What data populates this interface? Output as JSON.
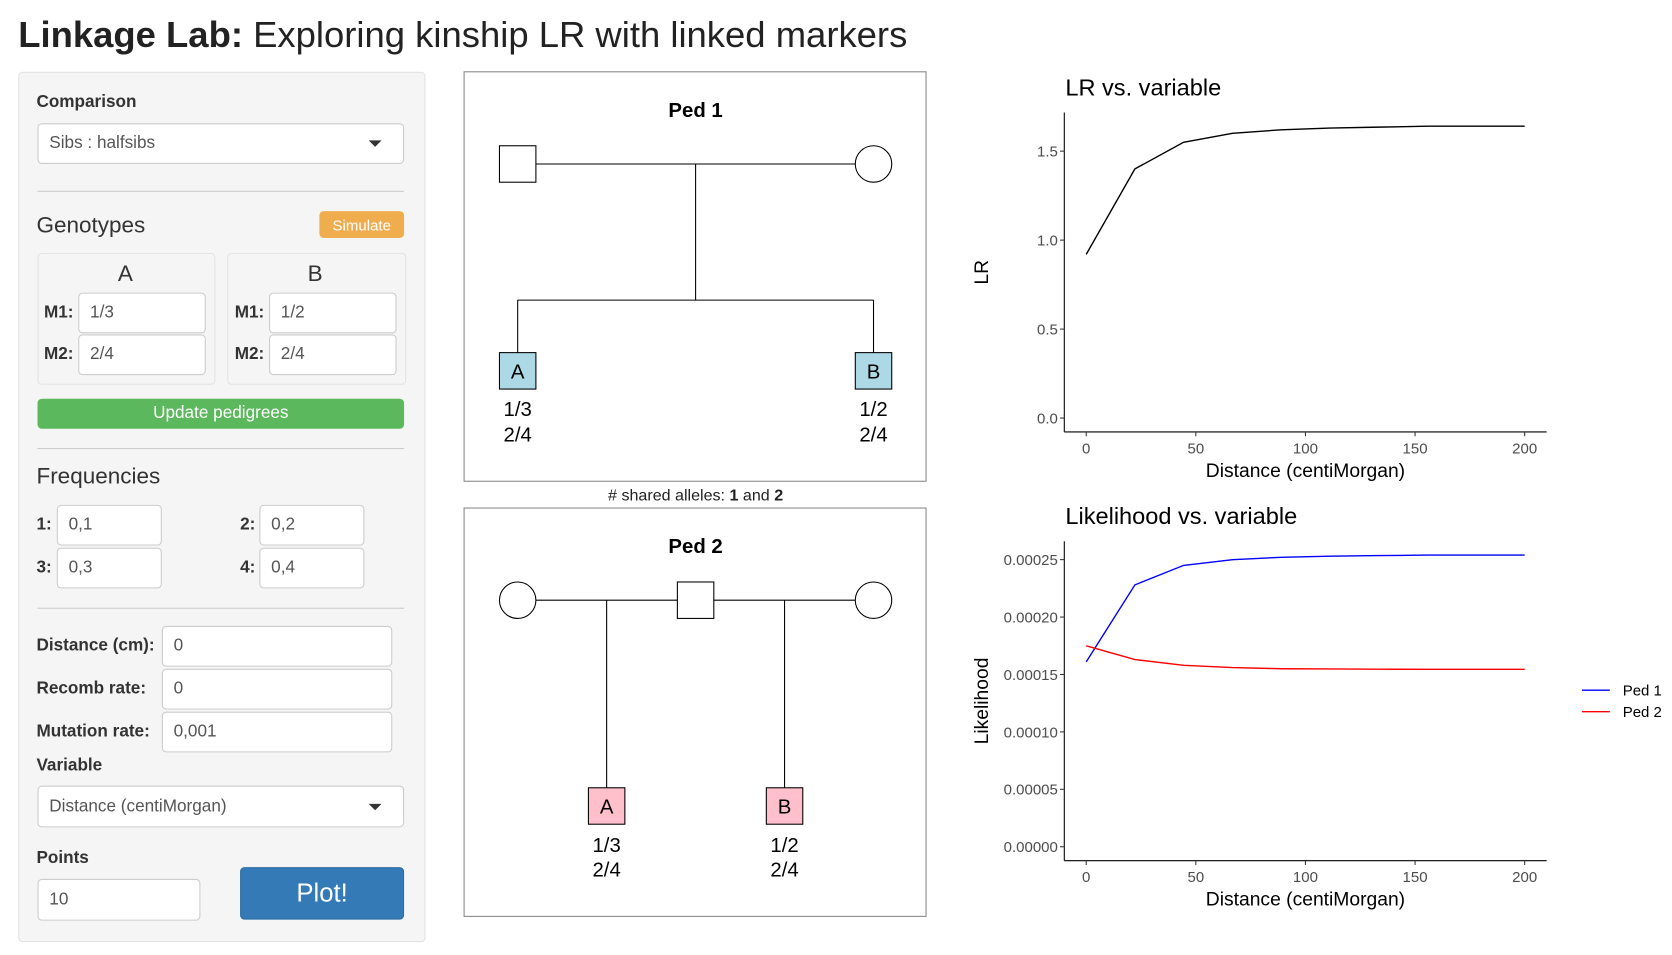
{
  "header": {
    "title_bold": "Linkage Lab:",
    "title_rest": "Exploring kinship LR with linked markers"
  },
  "sidebar": {
    "comparison_label": "Comparison",
    "comparison_value": "Sibs : halfsibs",
    "genotypes_heading": "Genotypes",
    "simulate_button": "Simulate",
    "genotypes": [
      {
        "name": "A",
        "m1_label": "M1:",
        "m1": "1/3",
        "m2_label": "M2:",
        "m2": "2/4"
      },
      {
        "name": "B",
        "m1_label": "M1:",
        "m1": "1/2",
        "m2_label": "M2:",
        "m2": "2/4"
      }
    ],
    "update_button": "Update pedigrees",
    "frequencies_heading": "Frequencies",
    "frequencies": [
      {
        "label": "1:",
        "value": "0,1"
      },
      {
        "label": "2:",
        "value": "0,2"
      },
      {
        "label": "3:",
        "value": "0,3"
      },
      {
        "label": "4:",
        "value": "0,4"
      }
    ],
    "distance_label": "Distance (cm):",
    "distance_value": "0",
    "recomb_label": "Recomb rate:",
    "recomb_value": "0",
    "mutation_label": "Mutation rate:",
    "mutation_value": "0,001",
    "variable_label": "Variable",
    "variable_value": "Distance (centiMorgan)",
    "points_label": "Points",
    "points_value": "10",
    "plot_button": "Plot!"
  },
  "pedigrees": [
    {
      "title": "Ped 1",
      "a_label": "A",
      "a_g1": "1/3",
      "a_g2": "2/4",
      "b_label": "B",
      "b_g1": "1/2",
      "b_g2": "2/4"
    },
    {
      "title": "Ped 2",
      "a_label": "A",
      "a_g1": "1/3",
      "a_g2": "2/4",
      "b_label": "B",
      "b_g1": "1/2",
      "b_g2": "2/4"
    }
  ],
  "shared_alleles": {
    "label": "# shared alleles:",
    "first": "1",
    "joiner": "and",
    "second": "2"
  },
  "chart_data": [
    {
      "type": "line",
      "title": "LR vs. variable",
      "x_label": "Distance (centiMorgan)",
      "y_label": "LR",
      "x": [
        0,
        22.2,
        44.4,
        66.7,
        88.9,
        111.1,
        133.3,
        155.6,
        177.8,
        200
      ],
      "values": [
        0.92,
        1.4,
        1.55,
        1.6,
        1.62,
        1.63,
        1.635,
        1.64,
        1.64,
        1.64
      ],
      "color": "#000000",
      "xlim": [
        -10,
        210
      ],
      "xticks": [
        0,
        50,
        100,
        150,
        200
      ],
      "ylim": [
        -0.078,
        1.717
      ],
      "yticks": [
        {
          "value": 0,
          "label": "0.0"
        },
        0.5,
        {
          "value": 1,
          "label": "1.0"
        },
        1.5
      ]
    },
    {
      "type": "line",
      "title": "Likelihood vs. variable",
      "x_label": "Distance (centiMorgan)",
      "y_label": "Likelihood",
      "x": [
        0,
        22.2,
        44.4,
        66.7,
        88.9,
        111.1,
        133.3,
        155.6,
        177.8,
        200
      ],
      "series": [
        {
          "name": "Ped 1",
          "color": "#0000ff",
          "values": [
            0.000161,
            0.000228,
            0.000245,
            0.00025,
            0.000252,
            0.000253,
            0.0002535,
            0.000254,
            0.000254,
            0.000254
          ]
        },
        {
          "name": "Ped 2",
          "color": "#ff0000",
          "values": [
            0.000175,
            0.000163,
            0.000158,
            0.000156,
            0.000155,
            0.0001548,
            0.0001546,
            0.0001545,
            0.0001545,
            0.0001545
          ]
        }
      ],
      "legend": "right",
      "xlim": [
        -10,
        210
      ],
      "xticks": [
        0,
        50,
        100,
        150,
        200
      ],
      "ylim": [
        -1.21e-05,
        0.000266
      ],
      "yticks": [
        {
          "value": 0,
          "label": "0.00000"
        },
        {
          "value": 5e-05,
          "label": "0.00005"
        },
        {
          "value": 0.0001,
          "label": "0.00010"
        },
        {
          "value": 0.00015,
          "label": "0.00015"
        },
        {
          "value": 0.0002,
          "label": "0.00020"
        },
        {
          "value": 0.00025,
          "label": "0.00025"
        }
      ]
    }
  ]
}
